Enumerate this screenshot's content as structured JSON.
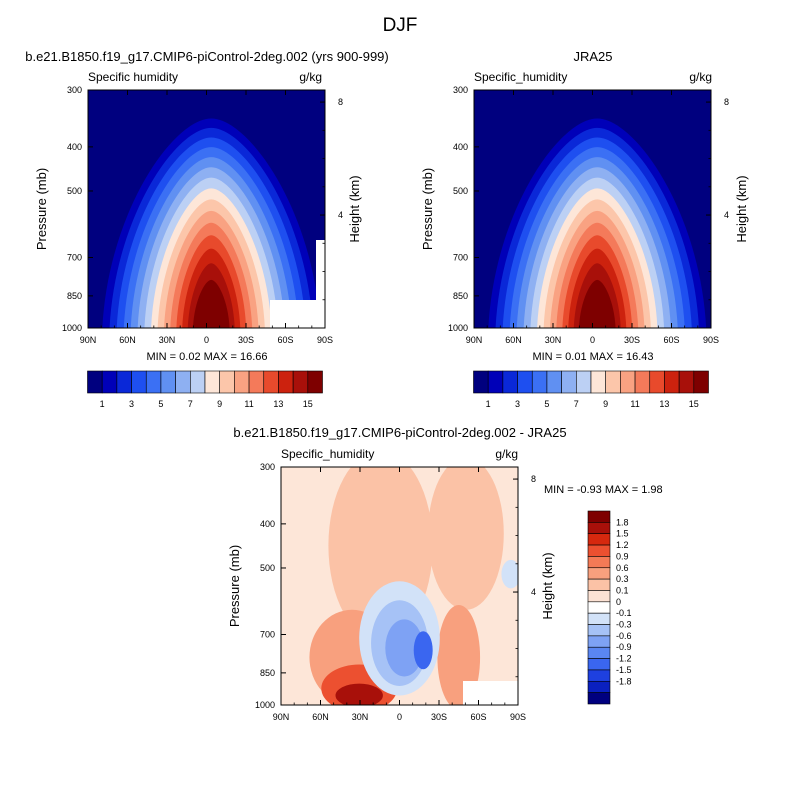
{
  "figure_title": "DJF",
  "colors": {
    "abs_levels": [
      "#00007f",
      "#0000b8",
      "#0a28d8",
      "#1e4ff0",
      "#3b70f4",
      "#6090f2",
      "#8eb0f2",
      "#bcd0f4",
      "#fde6d8",
      "#fcc6aa",
      "#f9a282",
      "#f47a5a",
      "#e84a2c",
      "#cc220e",
      "#a8100a",
      "#7e0000"
    ],
    "diff_levels": [
      "#00007f",
      "#0a20c0",
      "#1e40e0",
      "#3a66f0",
      "#5a86f2",
      "#7ea2f4",
      "#a6c2f6",
      "#d2e2f8",
      "#ffffff",
      "#fce2d4",
      "#fbc2a6",
      "#f8a07e",
      "#f47a56",
      "#ec5030",
      "#d6280e",
      "#a8100a",
      "#7e0000"
    ],
    "missing": "#ffffff"
  },
  "panels": {
    "model": {
      "title": "b.e21.B1850.f19_g17.CMIP6-piControl-2deg.002 (yrs 900-999)",
      "left_label": "Specific humidity",
      "right_label": "g/kg",
      "ylabel": "Pressure (mb)",
      "ylabel_right": "Height (km)",
      "stats": "MIN =  0.02  MAX =  16.66"
    },
    "obs": {
      "title": "JRA25",
      "left_label": "Specific_humidity",
      "right_label": "g/kg",
      "ylabel": "Pressure (mb)",
      "ylabel_right": "Height (km)",
      "stats": "MIN =  0.01  MAX =  16.43"
    },
    "diff": {
      "title": "b.e21.B1850.f19_g17.CMIP6-piControl-2deg.002 - JRA25",
      "left_label": "Specific_humidity",
      "right_label": "g/kg",
      "ylabel": "Pressure (mb)",
      "ylabel_right": "Height (km)",
      "stats": "MIN = -0.93  MAX =  1.98"
    }
  },
  "chart_data": [
    {
      "type": "heatmap",
      "title": "b.e21.B1850.f19_g17.CMIP6-piControl-2deg.002 (yrs 900-999)",
      "variable": "Specific humidity",
      "units": "g/kg",
      "x_ticks": [
        "90N",
        "60N",
        "30N",
        "0",
        "30S",
        "60S",
        "90S"
      ],
      "y_ticks": [
        "300",
        "400",
        "500",
        "700",
        "850",
        "1000"
      ],
      "y_ticks_right": [
        "8",
        "4"
      ],
      "y_scale": "log",
      "xlabel": "",
      "ylabel": "Pressure (mb)",
      "ylabel_right": "Height (km)",
      "ylim": [
        1000,
        300
      ],
      "xlim": [
        90,
        -90
      ],
      "colorbar_ticks": [
        "1",
        "3",
        "5",
        "7",
        "9",
        "11",
        "13",
        "15"
      ],
      "min": 0.02,
      "max": 16.66,
      "peak": {
        "lat": 0,
        "pressure": 1000,
        "value": 16.66
      }
    },
    {
      "type": "heatmap",
      "title": "JRA25",
      "variable": "Specific_humidity",
      "units": "g/kg",
      "x_ticks": [
        "90N",
        "60N",
        "30N",
        "0",
        "30S",
        "60S",
        "90S"
      ],
      "y_ticks": [
        "300",
        "400",
        "500",
        "700",
        "850",
        "1000"
      ],
      "y_ticks_right": [
        "8",
        "4"
      ],
      "y_scale": "log",
      "xlabel": "",
      "ylabel": "Pressure (mb)",
      "ylabel_right": "Height (km)",
      "ylim": [
        1000,
        300
      ],
      "xlim": [
        90,
        -90
      ],
      "colorbar_ticks": [
        "1",
        "3",
        "5",
        "7",
        "9",
        "11",
        "13",
        "15"
      ],
      "min": 0.01,
      "max": 16.43,
      "peak": {
        "lat": 0,
        "pressure": 1000,
        "value": 16.43
      }
    },
    {
      "type": "heatmap",
      "title": "b.e21.B1850.f19_g17.CMIP6-piControl-2deg.002 - JRA25",
      "variable": "Specific_humidity",
      "units": "g/kg",
      "x_ticks": [
        "90N",
        "60N",
        "30N",
        "0",
        "30S",
        "60S",
        "90S"
      ],
      "y_ticks": [
        "300",
        "400",
        "500",
        "700",
        "850",
        "1000"
      ],
      "y_ticks_right": [
        "8",
        "4"
      ],
      "y_scale": "log",
      "xlabel": "",
      "ylabel": "Pressure (mb)",
      "ylabel_right": "Height (km)",
      "ylim": [
        1000,
        300
      ],
      "xlim": [
        90,
        -90
      ],
      "colorbar_ticks": [
        "1.8",
        "1.5",
        "1.2",
        "0.9",
        "0.6",
        "0.3",
        "0.1",
        "0",
        "-0.1",
        "-0.3",
        "-0.6",
        "-0.9",
        "-1.2",
        "-1.5",
        "-1.8"
      ],
      "min": -0.93,
      "max": 1.98
    }
  ]
}
